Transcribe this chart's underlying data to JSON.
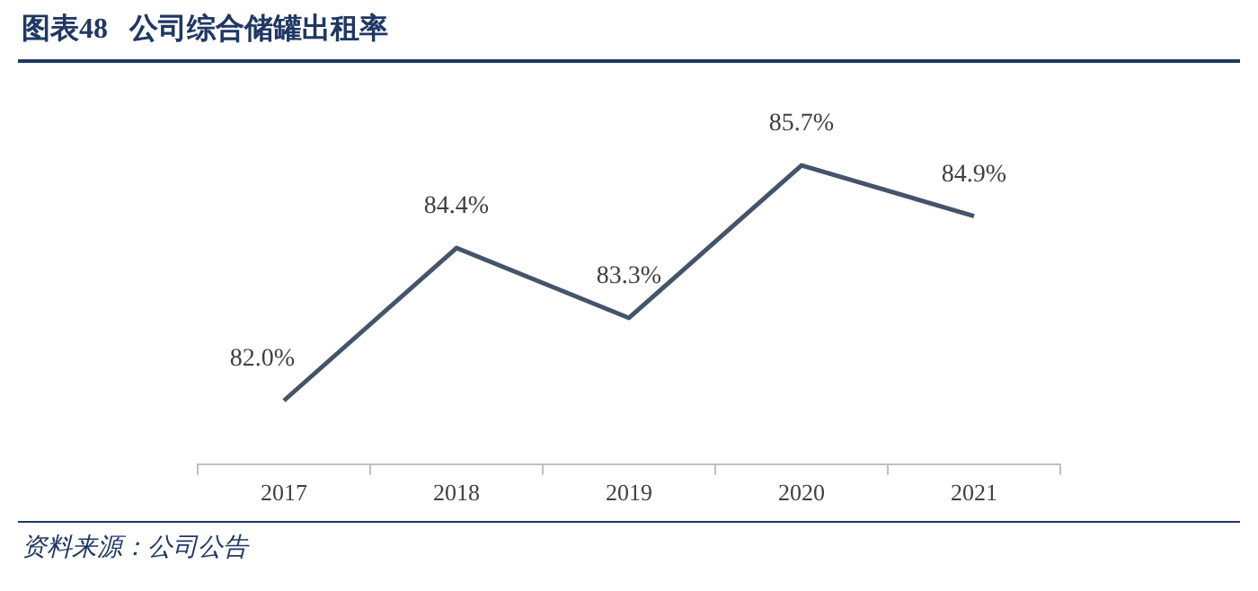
{
  "chart_data": {
    "type": "line",
    "title": "图表48   公司综合储罐出租率",
    "categories": [
      "2017",
      "2018",
      "2019",
      "2020",
      "2021"
    ],
    "series": [
      {
        "color": "#44546a",
        "values": [
          82.0,
          84.4,
          83.3,
          85.7,
          84.9
        ],
        "value_labels": [
          "82.0%",
          "84.4%",
          "83.3%",
          "85.7%",
          "84.9%"
        ]
      }
    ],
    "grid": false,
    "legend": false,
    "marker": "none",
    "line_style": "solid",
    "annotations": [
      "资料来源：公司公告"
    ]
  }
}
